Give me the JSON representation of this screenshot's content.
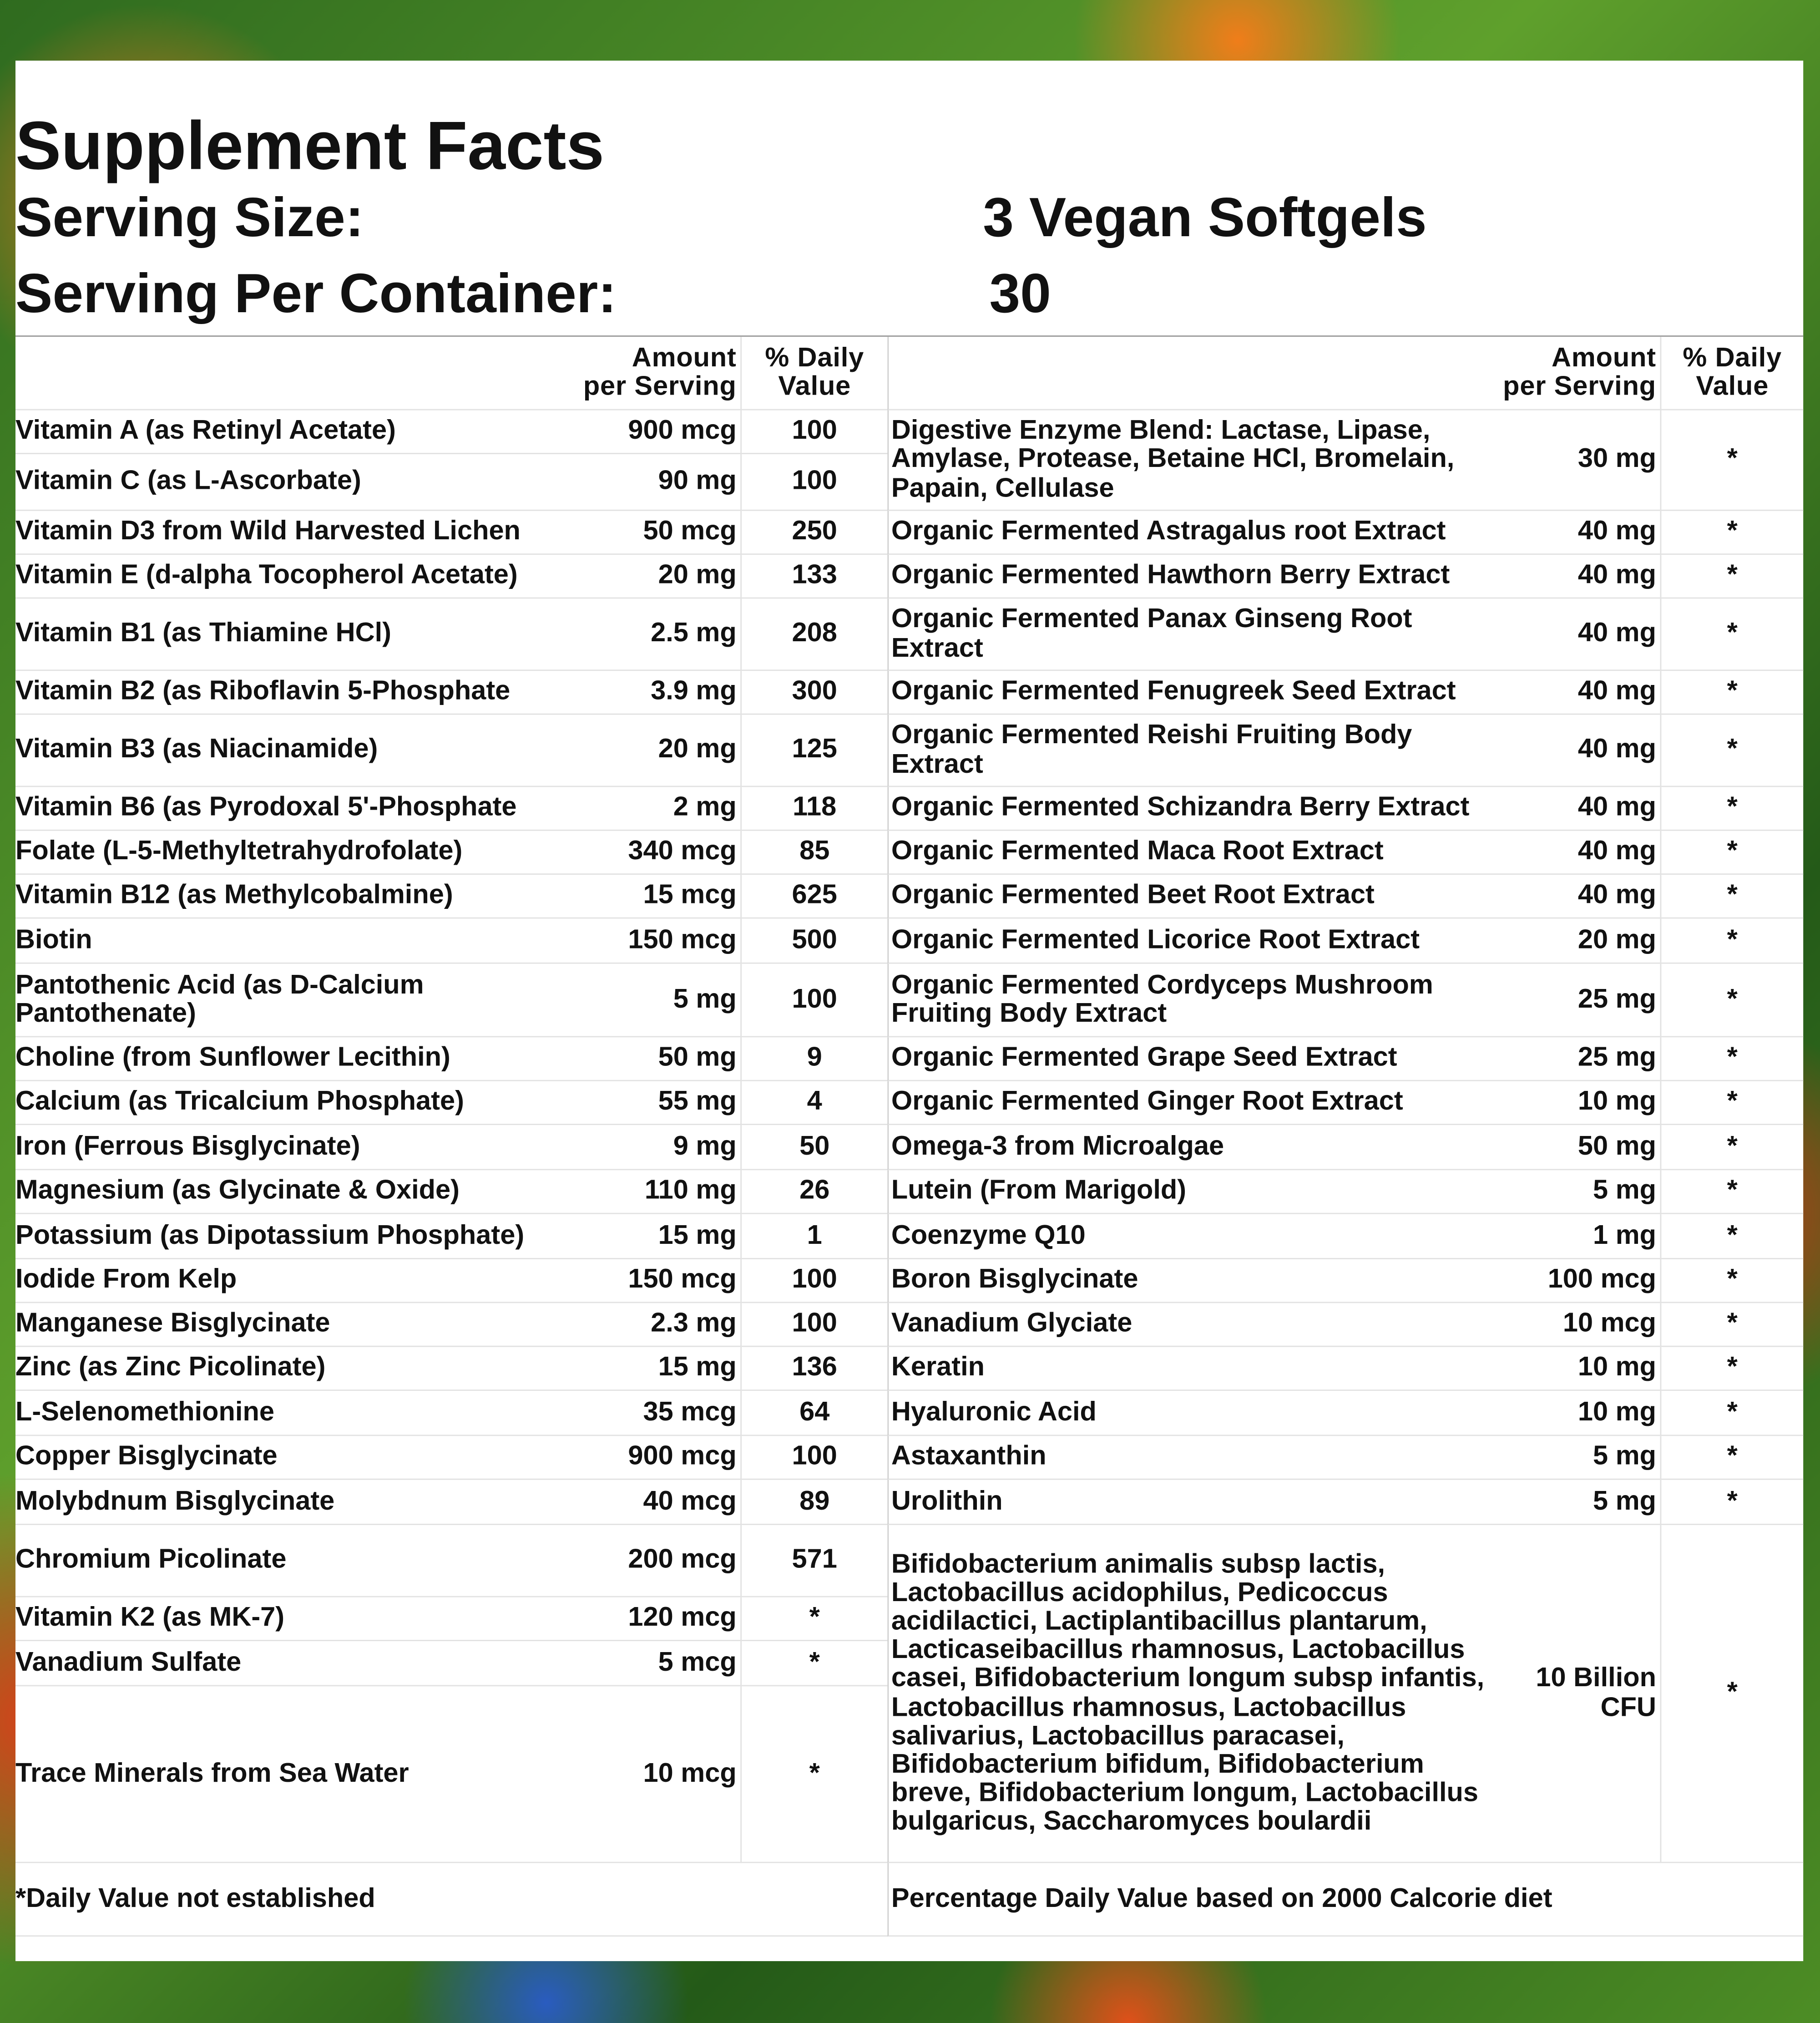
{
  "header": {
    "title": "Supplement Facts",
    "serving_size": {
      "label": "Serving Size:",
      "value": "3 Vegan Softgels"
    },
    "servings_per_container": {
      "label": "Serving Per Container:",
      "value": "30"
    }
  },
  "table": {
    "columns": [
      "Amount\nper Serving",
      "% Daily\nValue"
    ],
    "left": [
      [
        "Vitamin A (as Retinyl Acetate)",
        "900 mcg",
        "100"
      ],
      [
        "Vitamin C (as L-Ascorbate)",
        "90 mg",
        "100"
      ],
      [
        "Vitamin D3 from Wild Harvested Lichen",
        "50 mcg",
        "250"
      ],
      [
        "Vitamin E (d-alpha Tocopherol Acetate)",
        "20 mg",
        "133"
      ],
      [
        "Vitamin B1 (as Thiamine HCl)",
        "2.5 mg",
        "208"
      ],
      [
        "Vitamin B2 (as Riboflavin 5-Phosphate",
        "3.9 mg",
        "300"
      ],
      [
        "Vitamin B3 (as Niacinamide)",
        "20 mg",
        "125"
      ],
      [
        "Vitamin B6 (as Pyrodoxal 5'-Phosphate",
        "2 mg",
        "118"
      ],
      [
        "Folate (L-5-Methyltetrahydrofolate)",
        "340 mcg",
        "85"
      ],
      [
        "Vitamin B12 (as Methylcobalmine)",
        "15 mcg",
        "625"
      ],
      [
        "Biotin",
        "150 mcg",
        "500"
      ],
      [
        "Pantothenic Acid (as D-Calcium Pantothenate)",
        "5 mg",
        "100"
      ],
      [
        "Choline (from Sunflower Lecithin)",
        "50 mg",
        "9"
      ],
      [
        "Calcium (as Tricalcium Phosphate)",
        "55 mg",
        "4"
      ],
      [
        "Iron (Ferrous Bisglycinate)",
        "9 mg",
        "50"
      ],
      [
        "Magnesium (as Glycinate & Oxide)",
        "110 mg",
        "26"
      ],
      [
        "Potassium (as Dipotassium Phosphate)",
        "15 mg",
        "1"
      ],
      [
        "Iodide From Kelp",
        "150 mcg",
        "100"
      ],
      [
        "Manganese Bisglycinate",
        "2.3 mg",
        "100"
      ],
      [
        "Zinc (as Zinc Picolinate)",
        "15 mg",
        "136"
      ],
      [
        "L-Selenomethionine",
        "35 mcg",
        "64"
      ],
      [
        "Copper Bisglycinate",
        "900 mcg",
        "100"
      ],
      [
        "Molybdnum Bisglycinate",
        "40 mcg",
        "89"
      ],
      [
        "Chromium Picolinate",
        "200 mcg",
        "571"
      ],
      [
        "Vitamin K2 (as MK-7)",
        "120 mcg",
        "*"
      ],
      [
        "Vanadium Sulfate",
        "5 mcg",
        "*"
      ],
      [
        "Trace Minerals from Sea Water",
        "10 mcg",
        "*"
      ]
    ],
    "right": [
      [
        "Digestive Enzyme Blend: Lactase, Lipase, Amylase, Protease, Betaine HCl, Bromelain, Papain, Cellulase",
        "30 mg",
        "*"
      ],
      [
        "Organic Fermented Astragalus root Extract",
        "40 mg",
        "*"
      ],
      [
        "Organic Fermented Hawthorn Berry Extract",
        "40 mg",
        "*"
      ],
      [
        "Organic Fermented Panax Ginseng Root Extract",
        "40 mg",
        "*"
      ],
      [
        "Organic Fermented Fenugreek Seed Extract",
        "40 mg",
        "*"
      ],
      [
        "Organic Fermented Reishi Fruiting Body Extract",
        "40 mg",
        "*"
      ],
      [
        "Organic Fermented Schizandra Berry Extract",
        "40 mg",
        "*"
      ],
      [
        "Organic Fermented Maca Root Extract",
        "40 mg",
        "*"
      ],
      [
        "Organic Fermented Beet Root Extract",
        "40 mg",
        "*"
      ],
      [
        "Organic Fermented Licorice Root Extract",
        "20 mg",
        "*"
      ],
      [
        "Organic Fermented Cordyceps Mushroom Fruiting Body Extract",
        "25 mg",
        "*"
      ],
      [
        "Organic Fermented Grape Seed Extract",
        "25 mg",
        "*"
      ],
      [
        "Organic Fermented Ginger Root Extract",
        "10 mg",
        "*"
      ],
      [
        "Omega-3 from Microalgae",
        "50 mg",
        "*"
      ],
      [
        "Lutein (From Marigold)",
        "5 mg",
        "*"
      ],
      [
        "Coenzyme Q10",
        "1 mg",
        "*"
      ],
      [
        "Boron Bisglycinate",
        "100 mcg",
        "*"
      ],
      [
        "Vanadium Glyciate",
        "10 mcg",
        "*"
      ],
      [
        "Keratin",
        "10 mg",
        "*"
      ],
      [
        "Hyaluronic Acid",
        "10 mg",
        "*"
      ],
      [
        "Astaxanthin",
        "5 mg",
        "*"
      ],
      [
        "Urolithin",
        "5 mg",
        "*"
      ],
      [
        "Bifidobacterium animalis subsp lactis, Lactobacillus acidophilus, Pedicoccus acidilactici, Lactiplantibacillus plantarum, Lacticaseibacillus rhamnosus, Lactobacillus casei, Bifidobacterium longum subsp infantis, Lactobacillus rhamnosus, Lactobacillus salivarius, Lactobacillus paracasei, Bifidobacterium bifidum, Bifidobacterium breve, Bifidobacterium longum, Lactobacillus bulgaricus, Saccharomyces boulardii",
        "10 Billion\nCFU",
        "*"
      ]
    ],
    "footnotes": [
      "*Daily Value not established",
      "Percentage Daily Value based on 2000 Calcorie diet"
    ]
  }
}
